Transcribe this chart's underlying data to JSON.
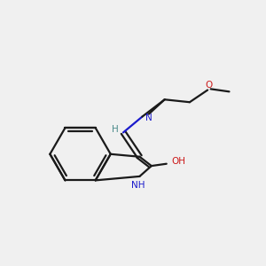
{
  "background_color": "#f0f0f0",
  "bond_color": "#1a1a1a",
  "n_color": "#1a1acc",
  "o_color": "#cc1a1a",
  "teal_color": "#4a8a8a",
  "line_width": 1.6,
  "figsize": [
    3.0,
    3.0
  ],
  "dpi": 100,
  "xlim": [
    0,
    10
  ],
  "ylim": [
    0,
    10
  ]
}
